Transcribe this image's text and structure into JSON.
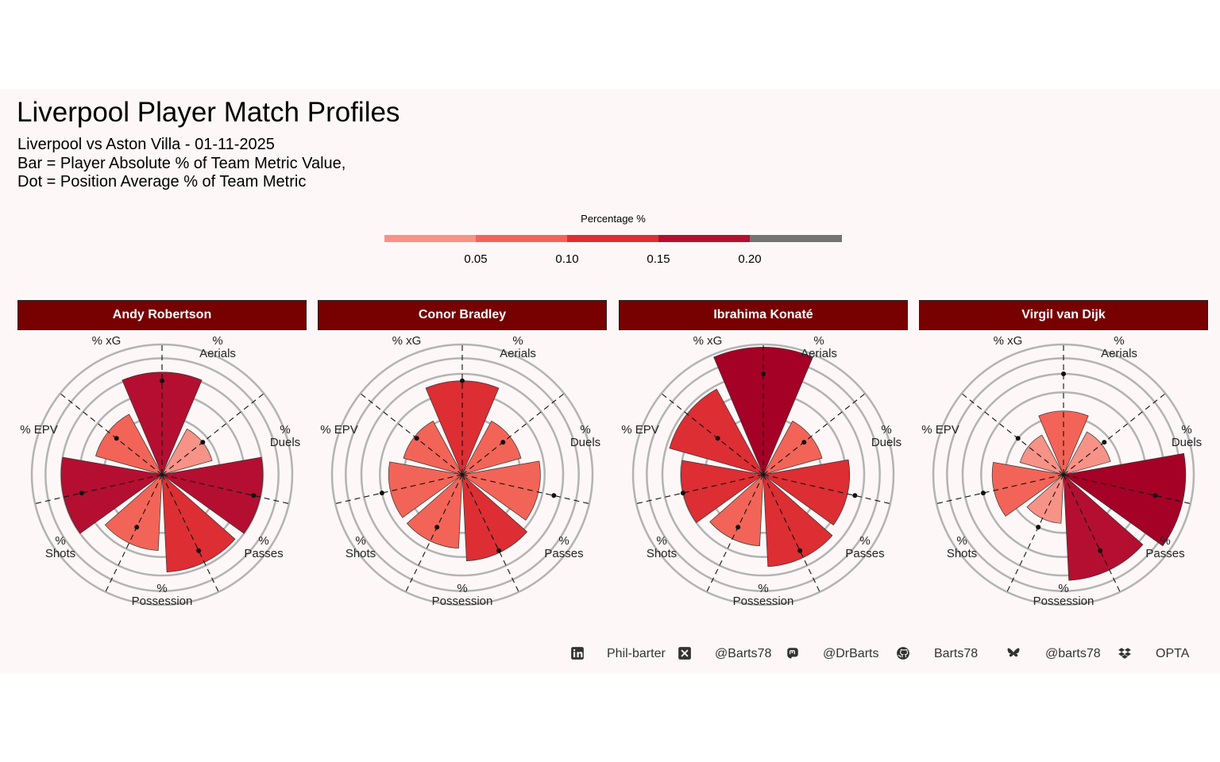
{
  "title": "Liverpool Player Match Profiles",
  "subtitle": [
    "Liverpool vs Aston Villa - 01-11-2025",
    "Bar = Player Absolute % of Team Metric Value,",
    "Dot = Position Average % of Team Metric"
  ],
  "legend": {
    "title": "Percentage %",
    "ticks": [
      "0.05",
      "0.10",
      "0.15",
      "0.20"
    ],
    "colors": [
      "#f79287",
      "#f26457",
      "#dc2e33",
      "#b40f30",
      "#737373"
    ]
  },
  "footer": [
    {
      "icon": "linkedin-icon",
      "text": "Phil-barter"
    },
    {
      "icon": "x-twitter-icon",
      "text": "@Barts78"
    },
    {
      "icon": "mastodon-icon",
      "text": "@DrBarts"
    },
    {
      "icon": "github-icon",
      "text": "Barts78"
    },
    {
      "icon": "bluesky-icon",
      "text": "@barts78"
    },
    {
      "icon": "dropbox-icon",
      "text": "OPTA"
    }
  ],
  "chart_data": {
    "type": "polar-bar",
    "metrics": [
      "% Aerials",
      "% Duels",
      "% Passes",
      "% Possession",
      "% Shots",
      "% EPV",
      "% xG"
    ],
    "players": [
      {
        "name": "Andy Robertson",
        "values": [
          0.155,
          0.04,
          0.15,
          0.14,
          0.085,
          0.15,
          0.07
        ],
        "position_avg": [
          0.13,
          0.04,
          0.13,
          0.105,
          0.05,
          0.1,
          0.05
        ]
      },
      {
        "name": "Conor Bradley",
        "values": [
          0.13,
          0.055,
          0.09,
          0.11,
          0.08,
          0.08,
          0.055
        ],
        "position_avg": [
          0.13,
          0.04,
          0.13,
          0.105,
          0.05,
          0.1,
          0.05
        ]
      },
      {
        "name": "Ibrahima Konaté",
        "values": [
          0.24,
          0.055,
          0.11,
          0.125,
          0.075,
          0.1,
          0.14
        ],
        "position_avg": [
          0.15,
          0.04,
          0.13,
          0.105,
          0.05,
          0.1,
          0.05
        ]
      },
      {
        "name": "Virgil van Dijk",
        "values": [
          0.06,
          0.035,
          0.22,
          0.165,
          0.035,
          0.075,
          0.03
        ],
        "position_avg": [
          0.15,
          0.04,
          0.13,
          0.105,
          0.05,
          0.1,
          0.05
        ]
      }
    ]
  }
}
